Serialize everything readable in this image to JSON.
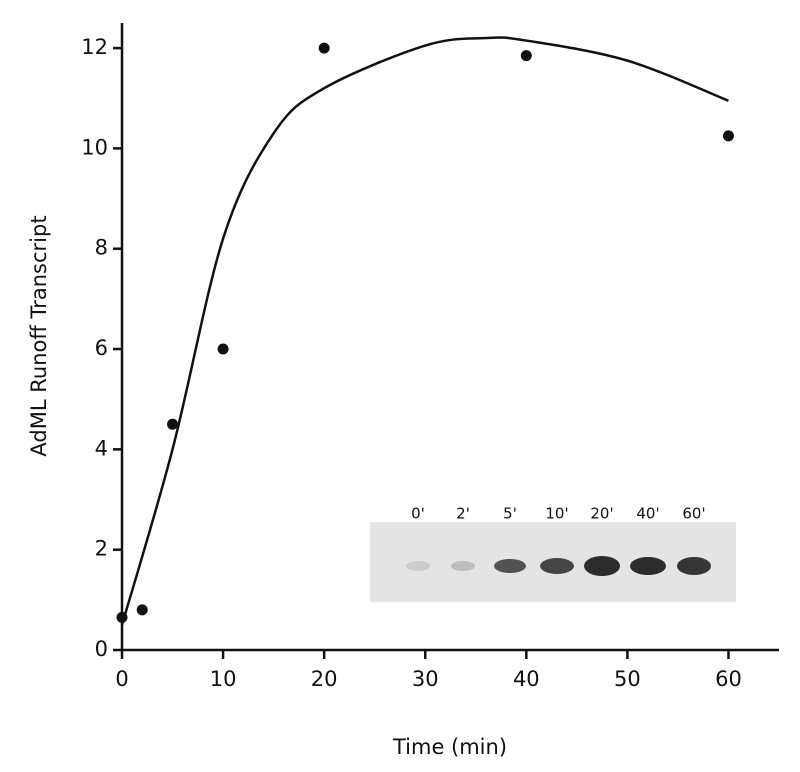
{
  "chart_data": {
    "type": "scatter",
    "x_label": "Time (min)",
    "y_label": "AdML Runoff Transcript",
    "xlim": [
      0,
      65
    ],
    "xticks": [
      0,
      10,
      20,
      30,
      40,
      50,
      60
    ],
    "ylim": [
      0,
      12.5
    ],
    "yticks": [
      0,
      2,
      4,
      6,
      8,
      10,
      12
    ],
    "series": [
      {
        "type": "scatter",
        "color": "#111111",
        "x": [
          0,
          2,
          5,
          10,
          20,
          40,
          60
        ],
        "values": [
          0.65,
          0.8,
          4.5,
          6,
          12,
          11.85,
          10.25
        ]
      },
      {
        "type": "line",
        "color": "#111111",
        "x": [
          0,
          5,
          10,
          15,
          20,
          30,
          36,
          40,
          50,
          60
        ],
        "values": [
          0.5,
          4,
          8.2,
          10.3,
          11.2,
          12.05,
          12.2,
          12.15,
          11.75,
          10.95
        ]
      }
    ],
    "inset_lanes": [
      "0'",
      "2'",
      "5'",
      "10'",
      "20'",
      "40'",
      "60'"
    ]
  }
}
